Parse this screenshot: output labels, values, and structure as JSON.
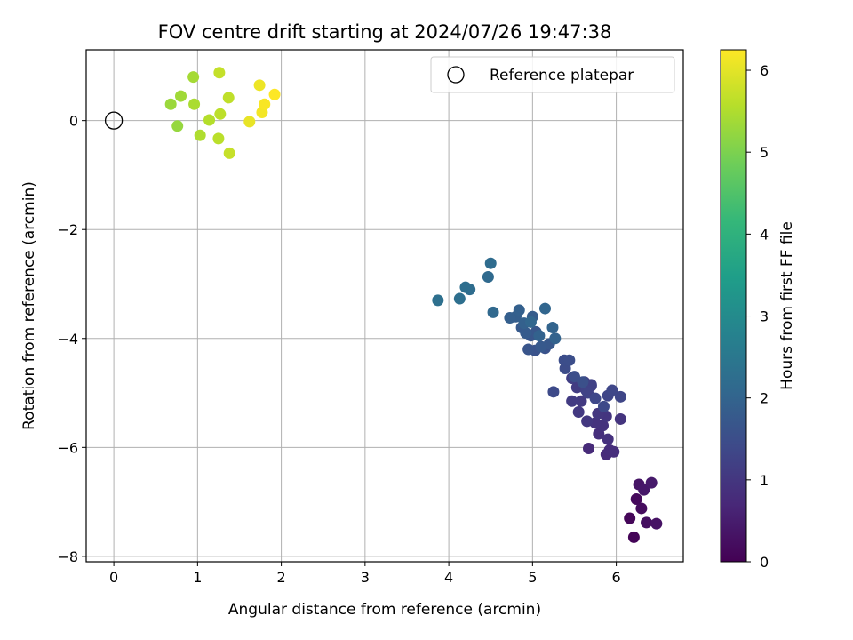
{
  "chart_data": {
    "type": "scatter",
    "title": "FOV centre drift starting at 2024/07/26 19:47:38",
    "xlabel": "Angular distance from reference (arcmin)",
    "ylabel": "Rotation from reference (arcmin)",
    "xlim": [
      -0.33,
      6.8
    ],
    "ylim": [
      -8.1,
      1.3
    ],
    "xticks": [
      "0",
      "1",
      "2",
      "3",
      "4",
      "5",
      "6"
    ],
    "yticks": [
      "0",
      "−2",
      "−4",
      "−6",
      "−8"
    ],
    "grid": true,
    "legend": {
      "position": "top-right",
      "label": "Reference platepar"
    },
    "reference_point": {
      "x": 0,
      "y": 0
    },
    "colorbar": {
      "label": "Hours from first FF file",
      "range": [
        0,
        6.25
      ],
      "ticks": [
        "0",
        "1",
        "2",
        "3",
        "4",
        "5",
        "6"
      ],
      "colormap": [
        "#440154",
        "#482878",
        "#3e4989",
        "#31688e",
        "#26828e",
        "#1f9e89",
        "#35b779",
        "#6ece58",
        "#b5de2b",
        "#fde725"
      ]
    },
    "series": [
      {
        "x": [
          6.21,
          6.16,
          6.24,
          6.3,
          6.36,
          6.48,
          6.27,
          6.33,
          6.42,
          5.67,
          5.88,
          5.92,
          5.97,
          5.79,
          5.9,
          5.84,
          5.75,
          6.05,
          5.88,
          5.78,
          5.65,
          5.55,
          5.58,
          5.47,
          5.53,
          5.7,
          5.47,
          5.62,
          5.7,
          5.64,
          5.66,
          5.9,
          6.05,
          5.95,
          5.75,
          5.85,
          5.25,
          5.39,
          5.38,
          5.44,
          5.5,
          5.6,
          5.15,
          5.03,
          4.95,
          4.98,
          5.04,
          5.2,
          5.1,
          4.87,
          4.92,
          5.0,
          4.8,
          4.73,
          4.84,
          4.9,
          5.08,
          5.27,
          5.24,
          5.15,
          4.98,
          4.53,
          4.47,
          4.5,
          4.25,
          4.2,
          4.13,
          3.87
        ],
        "y": [
          -7.65,
          -7.3,
          -6.95,
          -7.12,
          -7.38,
          -7.4,
          -6.68,
          -6.78,
          -6.65,
          -6.02,
          -6.13,
          -6.05,
          -6.08,
          -5.75,
          -5.85,
          -5.6,
          -5.55,
          -5.48,
          -5.43,
          -5.38,
          -5.52,
          -5.35,
          -5.15,
          -5.15,
          -4.9,
          -4.87,
          -4.73,
          -4.8,
          -4.85,
          -4.95,
          -5.0,
          -5.05,
          -5.07,
          -4.95,
          -5.1,
          -5.25,
          -4.98,
          -4.55,
          -4.4,
          -4.4,
          -4.7,
          -4.8,
          -4.18,
          -4.22,
          -4.2,
          -3.95,
          -3.88,
          -4.1,
          -4.15,
          -3.8,
          -3.9,
          -3.6,
          -3.6,
          -3.62,
          -3.48,
          -3.72,
          -3.95,
          -4.0,
          -3.8,
          -3.45,
          -3.7,
          -3.52,
          -2.87,
          -2.62,
          -3.1,
          -3.06,
          -3.27,
          -3.3
        ],
        "hours": [
          0.05,
          0.1,
          0.15,
          0.2,
          0.25,
          0.3,
          0.35,
          0.4,
          0.45,
          0.75,
          0.78,
          0.8,
          0.82,
          0.85,
          0.88,
          0.9,
          0.92,
          0.95,
          0.97,
          1.0,
          1.02,
          1.05,
          1.07,
          1.1,
          1.12,
          1.15,
          1.18,
          1.2,
          1.22,
          1.25,
          1.27,
          1.3,
          1.32,
          1.35,
          1.37,
          1.4,
          1.42,
          1.45,
          1.47,
          1.5,
          1.52,
          1.55,
          1.6,
          1.62,
          1.65,
          1.68,
          1.7,
          1.72,
          1.75,
          1.78,
          1.8,
          1.82,
          1.85,
          1.88,
          1.9,
          1.92,
          1.95,
          1.97,
          2.0,
          2.03,
          2.05,
          2.1,
          2.15,
          2.2,
          2.22,
          2.25,
          2.28,
          2.3
        ]
      },
      {
        "x": [
          0.76,
          0.68,
          0.8,
          0.95,
          0.96,
          1.03,
          1.14,
          1.25,
          1.27,
          1.37,
          1.26,
          1.38,
          1.62,
          1.74,
          1.77,
          1.8,
          1.92
        ],
        "y": [
          -0.1,
          0.3,
          0.45,
          0.8,
          0.3,
          -0.27,
          0.01,
          -0.33,
          0.12,
          0.42,
          0.88,
          -0.6,
          -0.02,
          0.65,
          0.15,
          0.3,
          0.48
        ],
        "hours": [
          5.25,
          5.3,
          5.35,
          5.4,
          5.45,
          5.5,
          5.55,
          5.6,
          5.62,
          5.65,
          5.7,
          5.72,
          6.05,
          6.1,
          6.15,
          6.2,
          6.25
        ]
      }
    ]
  }
}
